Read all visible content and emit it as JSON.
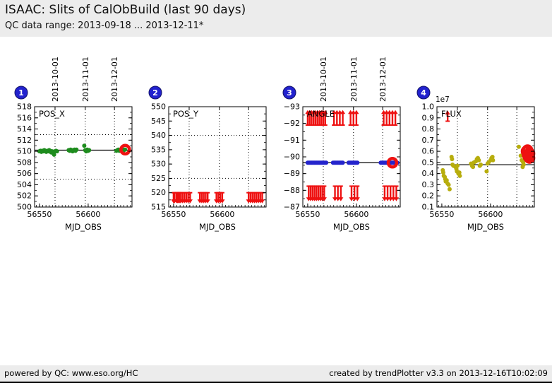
{
  "header": {
    "title": "ISAAC: Slits of CalObBuild (last 90 days)",
    "subtitle": "QC data range: 2013-09-18 ... 2013-12-11*"
  },
  "footer": {
    "left": "powered by QC: www.eso.org/HC",
    "right": "created by trendPlotter v3.3 on 2013-12-16T10:02:09"
  },
  "colors": {
    "green": "#1e8c1e",
    "red": "#ee1111",
    "blue": "#2424cc",
    "olive": "#b7ad0d",
    "badge": "#2222ce",
    "badge_border": "#111166",
    "strip_bg": "#ececec",
    "axis": "#000000"
  },
  "x_axis": {
    "label": "MJD_OBS",
    "range": [
      56545,
      56645
    ],
    "major_ticks": [
      [
        56550,
        "56550"
      ],
      [
        56600,
        "56600"
      ]
    ],
    "minor_start": 56546.7,
    "minor_step": 3.333,
    "minor_end": 56645,
    "date_lines": [
      [
        56566,
        "2013-10-01"
      ],
      [
        56597,
        "2013-11-01"
      ],
      [
        56627,
        "2013-12-01"
      ]
    ]
  },
  "chart_data": [
    {
      "type": "scatter",
      "badge": "1",
      "label": "POS_X",
      "color_key": "green",
      "ytop": 518,
      "ybottom": 500,
      "yticks": [
        [
          500,
          "500"
        ],
        [
          502,
          "502"
        ],
        [
          504,
          "504"
        ],
        [
          506,
          "506"
        ],
        [
          508,
          "508"
        ],
        [
          510,
          "510"
        ],
        [
          512,
          "512"
        ],
        [
          514,
          "514"
        ],
        [
          516,
          "516"
        ],
        [
          518,
          "518"
        ]
      ],
      "yminor": 1,
      "center_line": 510.2,
      "limit_lines": [
        513,
        505
      ],
      "top_dates": true,
      "points": [
        [
          56550,
          510.0
        ],
        [
          56551,
          510.1
        ],
        [
          56552,
          509.9
        ],
        [
          56553,
          510.1
        ],
        [
          56554,
          510.0
        ],
        [
          56555,
          510.2
        ],
        [
          56556,
          510.0
        ],
        [
          56557,
          509.9
        ],
        [
          56558,
          510.1
        ],
        [
          56559,
          510.0
        ],
        [
          56560,
          510.2
        ],
        [
          56561,
          510.1
        ],
        [
          56562,
          509.8
        ],
        [
          56563,
          510.0
        ],
        [
          56564,
          509.7
        ],
        [
          56565,
          509.4
        ],
        [
          56566,
          510.0
        ],
        [
          56567,
          510.1
        ],
        [
          56568,
          510.0
        ],
        [
          56580,
          510.2
        ],
        [
          56581,
          510.1
        ],
        [
          56582,
          510.3
        ],
        [
          56583,
          510.2
        ],
        [
          56584,
          510.0
        ],
        [
          56585,
          510.2
        ],
        [
          56586,
          510.3
        ],
        [
          56587,
          510.1
        ],
        [
          56588,
          510.3
        ],
        [
          56596,
          511.0
        ],
        [
          56597,
          510.2
        ],
        [
          56598,
          510.0
        ],
        [
          56599,
          510.3
        ],
        [
          56600,
          510.1
        ],
        [
          56601,
          510.2
        ],
        [
          56629,
          510.1
        ],
        [
          56630,
          510.2
        ],
        [
          56631,
          510.3
        ],
        [
          56632,
          510.1
        ],
        [
          56633,
          510.2
        ],
        [
          56634,
          510.3
        ],
        [
          56635,
          510.2
        ],
        [
          56636,
          510.1
        ],
        [
          56637,
          510.3
        ],
        [
          56638,
          510.3
        ]
      ],
      "highlights": [
        [
          56638,
          510.3
        ]
      ]
    },
    {
      "type": "scatter",
      "badge": "2",
      "label": "POS_Y",
      "color_key": "red",
      "ytop": 550,
      "ybottom": 515,
      "yticks": [
        [
          515,
          "515"
        ],
        [
          520,
          "520"
        ],
        [
          525,
          "525"
        ],
        [
          530,
          "530"
        ],
        [
          535,
          "535"
        ],
        [
          540,
          "540"
        ],
        [
          545,
          "545"
        ],
        [
          550,
          "550"
        ]
      ],
      "yminor": 2.5,
      "limit_lines": [
        540,
        525
      ],
      "top_dates": false,
      "down_arrows": {
        "xs": [
          56550,
          56551,
          56553,
          56554,
          56555,
          56556,
          56557,
          56559,
          56561,
          56563,
          56565,
          56567,
          56577,
          56579,
          56581,
          56583,
          56585,
          56594,
          56596,
          56598,
          56600,
          56627,
          56629,
          56631,
          56633,
          56635,
          56637,
          56639,
          56641
        ],
        "from": 520.0,
        "to": 516.3
      }
    },
    {
      "type": "scatter",
      "badge": "3",
      "label": "ANGLE",
      "color_key": "blue",
      "ytop": -93,
      "ybottom": -87,
      "yticks": [
        [
          -93,
          "−93"
        ],
        [
          -92,
          "−92"
        ],
        [
          -91,
          "−91"
        ],
        [
          -90,
          "−90"
        ],
        [
          -89,
          "−89"
        ],
        [
          -88,
          "−88"
        ],
        [
          -87,
          "−87"
        ]
      ],
      "yminor": 0.5,
      "center_line": -89.65,
      "top_dates": true,
      "points_y": -89.65,
      "points_x": [
        56550,
        56551,
        56552,
        56553,
        56554,
        56555,
        56556,
        56557,
        56558,
        56559,
        56560,
        56561,
        56562,
        56563,
        56564,
        56565,
        56566,
        56567,
        56568,
        56569,
        56576,
        56577,
        56578,
        56579,
        56580,
        56581,
        56582,
        56583,
        56584,
        56585,
        56586,
        56592,
        56593,
        56594,
        56595,
        56596,
        56597,
        56598,
        56599,
        56600,
        56601,
        56625,
        56626,
        56627,
        56628,
        56629,
        56630,
        56631,
        56632,
        56633,
        56634,
        56635,
        56636,
        56637,
        56638,
        56639,
        56640,
        56641,
        56642
      ],
      "up_arrows": {
        "xs": [
          56550,
          56552,
          56554,
          56556,
          56558,
          56560,
          56562,
          56564,
          56566,
          56568,
          56577,
          56580,
          56583,
          56586,
          56594,
          56597,
          56600,
          56628,
          56631,
          56634,
          56637,
          56640
        ],
        "from": -91.9,
        "to": -92.8
      },
      "down_arrows": {
        "xs": [
          56551,
          56553,
          56555,
          56557,
          56559,
          56561,
          56563,
          56565,
          56567,
          56578,
          56581,
          56584,
          56595,
          56598,
          56601,
          56629,
          56632,
          56635,
          56638,
          56641
        ],
        "from": -88.25,
        "to": -87.35
      },
      "highlights": [
        [
          56637,
          -89.65
        ]
      ]
    },
    {
      "type": "scatter",
      "badge": "4",
      "label": "FLUX",
      "color_key": "olive",
      "ytop": 1.0,
      "ybottom": 0.1,
      "offset_label": "1e7",
      "yticks": [
        [
          0.1,
          "0.1"
        ],
        [
          0.2,
          "0.2"
        ],
        [
          0.3,
          "0.3"
        ],
        [
          0.4,
          "0.4"
        ],
        [
          0.5,
          "0.5"
        ],
        [
          0.6,
          "0.6"
        ],
        [
          0.7,
          "0.7"
        ],
        [
          0.8,
          "0.8"
        ],
        [
          0.9,
          "0.9"
        ],
        [
          1.0,
          "1.0"
        ]
      ],
      "yminor": 0.05,
      "center_line": 0.48,
      "top_dates": false,
      "points": [
        [
          56551,
          0.43
        ],
        [
          56551.5,
          0.41
        ],
        [
          56552,
          0.38
        ],
        [
          56553,
          0.37
        ],
        [
          56553.5,
          0.35
        ],
        [
          56554,
          0.33
        ],
        [
          56555,
          0.34
        ],
        [
          56556,
          0.31
        ],
        [
          56557,
          0.3
        ],
        [
          56558,
          0.26
        ],
        [
          56560,
          0.55
        ],
        [
          56560.5,
          0.53
        ],
        [
          56561,
          0.48
        ],
        [
          56562,
          0.47
        ],
        [
          56564,
          0.46
        ],
        [
          56565,
          0.44
        ],
        [
          56565.5,
          0.42
        ],
        [
          56566,
          0.47
        ],
        [
          56567,
          0.4
        ],
        [
          56568,
          0.41
        ],
        [
          56568.5,
          0.38
        ],
        [
          56580,
          0.49
        ],
        [
          56581,
          0.47
        ],
        [
          56582,
          0.46
        ],
        [
          56583,
          0.5
        ],
        [
          56585,
          0.51
        ],
        [
          56586,
          0.53
        ],
        [
          56587,
          0.54
        ],
        [
          56588,
          0.52
        ],
        [
          56589,
          0.47
        ],
        [
          56590,
          0.48
        ],
        [
          56596,
          0.42
        ],
        [
          56597,
          0.49
        ],
        [
          56598,
          0.5
        ],
        [
          56600,
          0.52
        ],
        [
          56601,
          0.54
        ],
        [
          56602,
          0.55
        ],
        [
          56602.5,
          0.52
        ],
        [
          56629,
          0.64
        ],
        [
          56631,
          0.56
        ],
        [
          56632,
          0.52
        ],
        [
          56633,
          0.46
        ],
        [
          56633.5,
          0.5
        ],
        [
          56634,
          0.48
        ],
        [
          56635,
          0.55
        ],
        [
          56636,
          0.58
        ],
        [
          56637,
          0.6
        ],
        [
          56638,
          0.57
        ],
        [
          56638,
          0.61
        ],
        [
          56639,
          0.55
        ],
        [
          56640,
          0.54
        ],
        [
          56640,
          0.58
        ]
      ],
      "up_arrows": {
        "xs": [
          56556
        ],
        "from": 0.87,
        "to": 0.965
      },
      "highlights": [
        [
          56637,
          0.6
        ],
        [
          56638,
          0.57
        ],
        [
          56638,
          0.61
        ],
        [
          56639,
          0.55
        ],
        [
          56640,
          0.54
        ],
        [
          56640,
          0.58
        ]
      ]
    }
  ]
}
